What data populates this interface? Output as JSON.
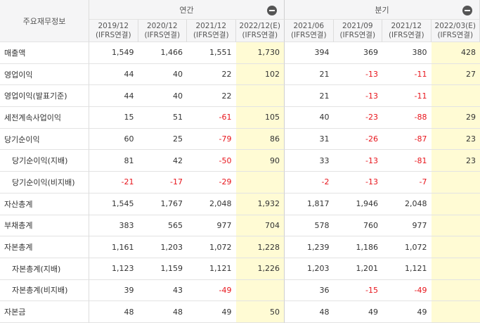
{
  "table": {
    "corner": "주요재무정보",
    "groups": [
      "연간",
      "분기"
    ],
    "columns": [
      {
        "period": "2019/12",
        "basis": "(IFRS연결)"
      },
      {
        "period": "2020/12",
        "basis": "(IFRS연결)"
      },
      {
        "period": "2021/12",
        "basis": "(IFRS연결)"
      },
      {
        "period": "2022/12(E)",
        "basis": "(IFRS연결)",
        "estimate": true
      },
      {
        "period": "2021/06",
        "basis": "(IFRS연결)"
      },
      {
        "period": "2021/09",
        "basis": "(IFRS연결)"
      },
      {
        "period": "2021/12",
        "basis": "(IFRS연결)"
      },
      {
        "period": "2022/03(E)",
        "basis": "(IFRS연결)",
        "estimate": true
      }
    ],
    "rows": [
      {
        "label": "매출액",
        "values": [
          "1,549",
          "1,466",
          "1,551",
          "1,730",
          "394",
          "369",
          "380",
          "428"
        ]
      },
      {
        "label": "영업이익",
        "values": [
          "44",
          "40",
          "22",
          "102",
          "21",
          "-13",
          "-11",
          "27"
        ]
      },
      {
        "label": "영업이익(발표기준)",
        "values": [
          "44",
          "40",
          "22",
          null,
          "21",
          "-13",
          "-11",
          null
        ]
      },
      {
        "label": "세전계속사업이익",
        "values": [
          "15",
          "51",
          "-61",
          "105",
          "40",
          "-23",
          "-88",
          "29"
        ]
      },
      {
        "label": "당기순이익",
        "values": [
          "60",
          "25",
          "-79",
          "86",
          "31",
          "-26",
          "-87",
          "23"
        ]
      },
      {
        "label": "당기순이익(지배)",
        "sub": true,
        "values": [
          "81",
          "42",
          "-50",
          "90",
          "33",
          "-13",
          "-81",
          "23"
        ]
      },
      {
        "label": "당기순이익(비지배)",
        "sub": true,
        "values": [
          "-21",
          "-17",
          "-29",
          null,
          "-2",
          "-13",
          "-7",
          null
        ]
      },
      {
        "label": "자산총계",
        "values": [
          "1,545",
          "1,767",
          "2,048",
          "1,932",
          "1,817",
          "1,946",
          "2,048",
          null
        ]
      },
      {
        "label": "부채총계",
        "values": [
          "383",
          "565",
          "977",
          "704",
          "578",
          "760",
          "977",
          null
        ]
      },
      {
        "label": "자본총계",
        "values": [
          "1,161",
          "1,203",
          "1,072",
          "1,228",
          "1,239",
          "1,186",
          "1,072",
          null
        ]
      },
      {
        "label": "자본총계(지배)",
        "sub": true,
        "values": [
          "1,123",
          "1,159",
          "1,121",
          "1,226",
          "1,203",
          "1,201",
          "1,121",
          null
        ]
      },
      {
        "label": "자본총계(비지배)",
        "sub": true,
        "values": [
          "39",
          "43",
          "-49",
          null,
          "36",
          "-15",
          "-49",
          null
        ]
      },
      {
        "label": "자본금",
        "values": [
          "48",
          "48",
          "49",
          "50",
          "48",
          "49",
          "49",
          null
        ]
      }
    ]
  }
}
